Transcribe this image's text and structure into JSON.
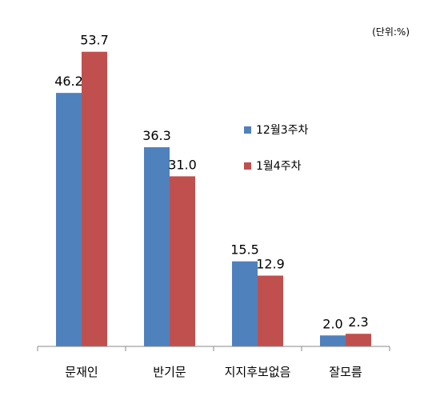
{
  "chart_data": {
    "type": "bar",
    "unit_note": "(단위:%)",
    "categories": [
      "문재인",
      "반기문",
      "지지후보없음",
      "잘모름"
    ],
    "series": [
      {
        "name": "12월3주차",
        "color": "#4f81bd",
        "values": [
          46.2,
          36.3,
          15.5,
          2.0
        ],
        "labels": [
          "46.2",
          "36.3",
          "15.5",
          "2.0"
        ]
      },
      {
        "name": "1월4주차",
        "color": "#c0504d",
        "values": [
          53.7,
          31.0,
          12.9,
          2.3
        ],
        "labels": [
          "53.7",
          "31.0",
          "12.9",
          "2.3"
        ]
      }
    ],
    "ylim": [
      0,
      60
    ],
    "grid": false,
    "legend_position": "middle-right"
  }
}
